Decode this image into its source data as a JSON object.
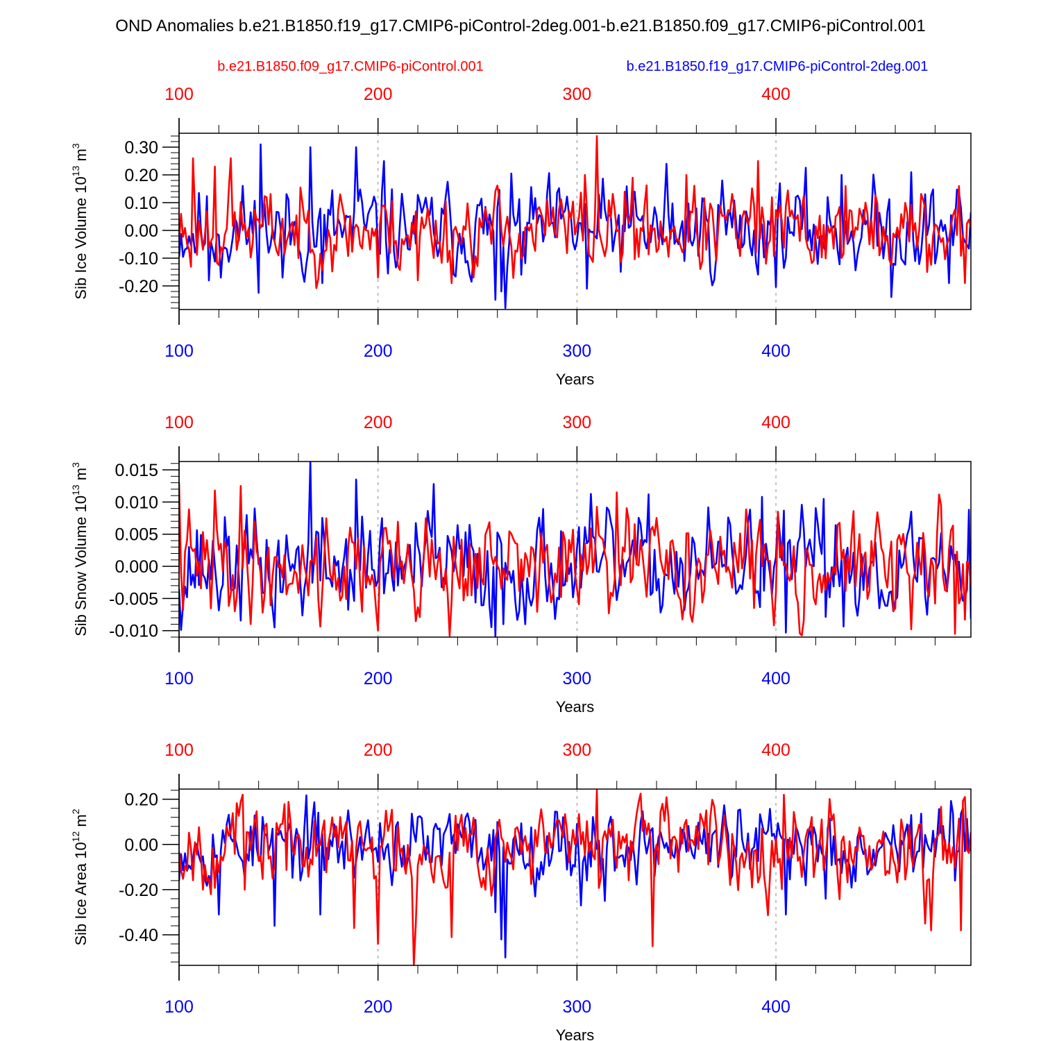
{
  "figure_title": "OND Anomalies b.e21.B1850.f19_g17.CMIP6-piControl-2deg.001-b.e21.B1850.f09_g17.CMIP6-piControl.001",
  "legend": {
    "red_label": "b.e21.B1850.f09_g17.CMIP6-piControl.001",
    "blue_label": "b.e21.B1850.f19_g17.CMIP6-piControl-2deg.001"
  },
  "colors": {
    "red": "#ff0000",
    "blue": "#0000ff",
    "axis": "#000000",
    "grid": "#888888"
  },
  "chart_data": [
    {
      "type": "line",
      "id": "ice-volume",
      "ylabel": {
        "main": "Sib Ice Volume 10",
        "exp": "13",
        "unit": " m",
        "unit_exp": "3"
      },
      "xlabel": "Years",
      "xlim": [
        100,
        498
      ],
      "ylim": [
        -0.285,
        0.35
      ],
      "x_ticks": [
        100,
        200,
        300,
        400
      ],
      "x_tick_labels": [
        "100",
        "200",
        "300",
        "400"
      ],
      "y_ticks": [
        -0.2,
        -0.1,
        0.0,
        0.1,
        0.2,
        0.3
      ],
      "y_tick_labels": [
        "-0.20",
        "-0.10",
        "0.00",
        "0.10",
        "0.20",
        "0.30"
      ],
      "y_minor_step": 0.02,
      "series": [
        {
          "name": "b.e21.B1850.f19_g17.CMIP6-piControl-2deg.001",
          "color": "#0000ff",
          "x_start": 100,
          "amplitude": 0.09,
          "seed": 11,
          "events": [
            [
              141,
              0.31
            ],
            [
              166,
              0.3
            ],
            [
              189,
              0.3
            ],
            [
              115,
              -0.18
            ],
            [
              121,
              -0.17
            ],
            [
              152,
              -0.17
            ],
            [
              172,
              -0.19
            ],
            [
              203,
              0.25
            ],
            [
              259,
              -0.25
            ],
            [
              262,
              -0.22
            ],
            [
              264,
              -0.28
            ],
            [
              272,
              -0.16
            ],
            [
              305,
              -0.21
            ],
            [
              345,
              0.24
            ],
            [
              373,
              0.18
            ],
            [
              433,
              0.2
            ],
            [
              458,
              -0.24
            ],
            [
              468,
              0.21
            ],
            [
              487,
              -0.19
            ]
          ]
        },
        {
          "name": "b.e21.B1850.f09_g17.CMIP6-piControl.001",
          "color": "#ff0000",
          "x_start": 100,
          "amplitude": 0.08,
          "seed": 23,
          "events": [
            [
              107,
              0.26
            ],
            [
              118,
              0.23
            ],
            [
              126,
              0.26
            ],
            [
              200,
              -0.17
            ],
            [
              220,
              -0.18
            ],
            [
              237,
              -0.19
            ],
            [
              310,
              0.34
            ],
            [
              304,
              0.2
            ],
            [
              328,
              0.19
            ],
            [
              355,
              0.2
            ],
            [
              391,
              0.25
            ],
            [
              395,
              -0.12
            ],
            [
              435,
              0.16
            ],
            [
              476,
              -0.15
            ],
            [
              492,
              0.16
            ],
            [
              495,
              -0.19
            ]
          ]
        }
      ]
    },
    {
      "type": "line",
      "id": "snow-volume",
      "ylabel": {
        "main": "Sib Snow Volume 10",
        "exp": "13",
        "unit": " m",
        "unit_exp": "3"
      },
      "xlabel": "Years",
      "xlim": [
        100,
        498
      ],
      "ylim": [
        -0.011,
        0.0163
      ],
      "x_ticks": [
        100,
        200,
        300,
        400
      ],
      "x_tick_labels": [
        "100",
        "200",
        "300",
        "400"
      ],
      "y_ticks": [
        -0.01,
        -0.005,
        0.0,
        0.005,
        0.01,
        0.015
      ],
      "y_tick_labels": [
        "-0.010",
        "-0.005",
        "0.000",
        "0.005",
        "0.010",
        "0.015"
      ],
      "y_minor_step": 0.001,
      "series": [
        {
          "name": "b.e21.B1850.f19_g17.CMIP6-piControl-2deg.001",
          "color": "#0000ff",
          "x_start": 100,
          "amplitude": 0.0045,
          "seed": 37,
          "events": [
            [
              166,
              0.0163
            ],
            [
              189,
              0.0135
            ],
            [
              228,
              0.0128
            ],
            [
              104,
              -0.0048
            ],
            [
              148,
              -0.0095
            ],
            [
              259,
              -0.011
            ],
            [
              263,
              -0.009
            ],
            [
              405,
              -0.0103
            ],
            [
              393,
              0.0108
            ],
            [
              424,
              0.0105
            ],
            [
              497,
              0.0088
            ],
            [
              498,
              -0.0082
            ]
          ]
        },
        {
          "name": "b.e21.B1850.f09_g17.CMIP6-piControl.001",
          "color": "#ff0000",
          "x_start": 100,
          "amplitude": 0.0042,
          "seed": 41,
          "events": [
            [
              100,
              0.013
            ],
            [
              118,
              0.0118
            ],
            [
              131,
              0.0125
            ],
            [
              200,
              -0.01
            ],
            [
              236,
              -0.0108
            ],
            [
              320,
              0.0115
            ],
            [
              401,
              0.0085
            ],
            [
              468,
              -0.0098
            ],
            [
              490,
              -0.0105
            ],
            [
              483,
              0.0095
            ]
          ]
        }
      ]
    },
    {
      "type": "line",
      "id": "ice-area",
      "ylabel": {
        "main": "Sib Ice Area 10",
        "exp": "12",
        "unit": " m",
        "unit_exp": "2"
      },
      "xlabel": "Years",
      "xlim": [
        100,
        498
      ],
      "ylim": [
        -0.535,
        0.245
      ],
      "x_ticks": [
        100,
        200,
        300,
        400
      ],
      "x_tick_labels": [
        "100",
        "200",
        "300",
        "400"
      ],
      "y_ticks": [
        -0.4,
        -0.2,
        0.0,
        0.2
      ],
      "y_tick_labels": [
        "-0.40",
        "-0.20",
        "0.00",
        "0.20"
      ],
      "y_minor_step": 0.04,
      "series": [
        {
          "name": "b.e21.B1850.f19_g17.CMIP6-piControl-2deg.001",
          "color": "#0000ff",
          "x_start": 100,
          "amplitude": 0.09,
          "seed": 53,
          "events": [
            [
              120,
              -0.31
            ],
            [
              148,
              -0.36
            ],
            [
              171,
              -0.31
            ],
            [
              259,
              -0.3
            ],
            [
              262,
              -0.42
            ],
            [
              264,
              -0.5
            ],
            [
              302,
              -0.27
            ],
            [
              314,
              -0.25
            ],
            [
              405,
              -0.31
            ],
            [
              425,
              -0.24
            ],
            [
              468,
              0.13
            ]
          ]
        },
        {
          "name": "b.e21.B1850.f09_g17.CMIP6-piControl.001",
          "color": "#ff0000",
          "x_start": 100,
          "amplitude": 0.1,
          "seed": 67,
          "events": [
            [
              132,
              0.22
            ],
            [
              133,
              -0.2
            ],
            [
              188,
              -0.37
            ],
            [
              200,
              -0.44
            ],
            [
              218,
              -0.54
            ],
            [
              219,
              -0.35
            ],
            [
              237,
              -0.41
            ],
            [
              310,
              0.24
            ],
            [
              338,
              -0.45
            ],
            [
              404,
              0.22
            ],
            [
              475,
              -0.35
            ],
            [
              478,
              -0.38
            ],
            [
              493,
              -0.38
            ],
            [
              495,
              0.21
            ]
          ]
        }
      ]
    }
  ]
}
